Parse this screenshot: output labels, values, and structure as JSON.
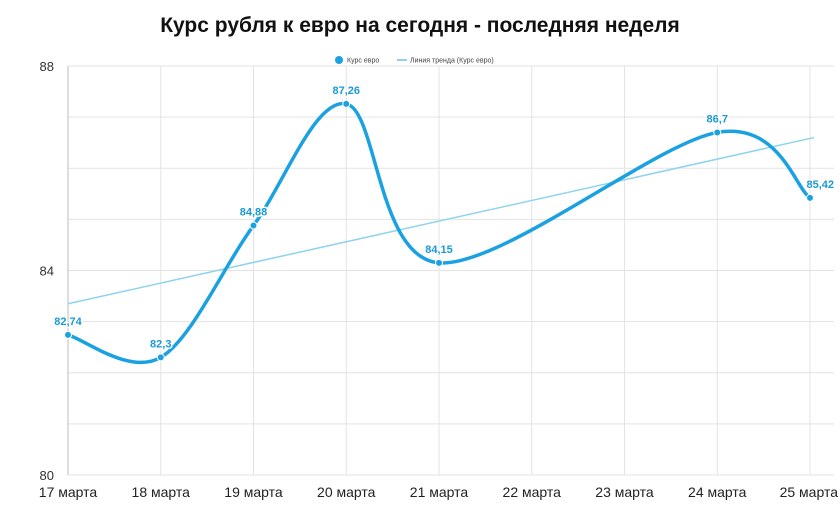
{
  "chart_data": {
    "type": "line",
    "title": "Курс рубля к евро на сегодня - последняя неделя",
    "xlabel": "",
    "ylabel": "",
    "x": [
      "17 марта",
      "18 марта",
      "19 марта",
      "20 марта",
      "21 марта",
      "22 марта",
      "23 марта",
      "24 марта",
      "25 марта"
    ],
    "series": [
      {
        "name": "Курс евро",
        "points": [
          {
            "x": "17 марта",
            "y": 82.74,
            "label": "82,74"
          },
          {
            "x": "18 марта",
            "y": 82.3,
            "label": "82,3"
          },
          {
            "x": "19 марта",
            "y": 84.88,
            "label": "84,88"
          },
          {
            "x": "20 марта",
            "y": 87.26,
            "label": "87,26"
          },
          {
            "x": "21 марта",
            "y": 84.15,
            "label": "84,15"
          },
          {
            "x": "24 марта",
            "y": 86.7,
            "label": "86,7"
          },
          {
            "x": "25 марта",
            "y": 85.42,
            "label": "85,42"
          }
        ],
        "color": "#1ba1e2"
      },
      {
        "name": "Линия тренда (Курс евро)",
        "trendline": true,
        "points": [
          {
            "x": "17 марта",
            "y": 83.35
          },
          {
            "x": "25 марта",
            "y": 86.6
          }
        ],
        "color": "#8fd3ee"
      }
    ],
    "ylim": [
      80,
      88
    ],
    "yticks": [
      80,
      84,
      88
    ],
    "grid": true,
    "legend": "top-center"
  },
  "colors": {
    "series": "#1ba1e2",
    "trend": "#8fd3ee",
    "label": "#1a9ad6",
    "grid": "#e3e3e3"
  }
}
